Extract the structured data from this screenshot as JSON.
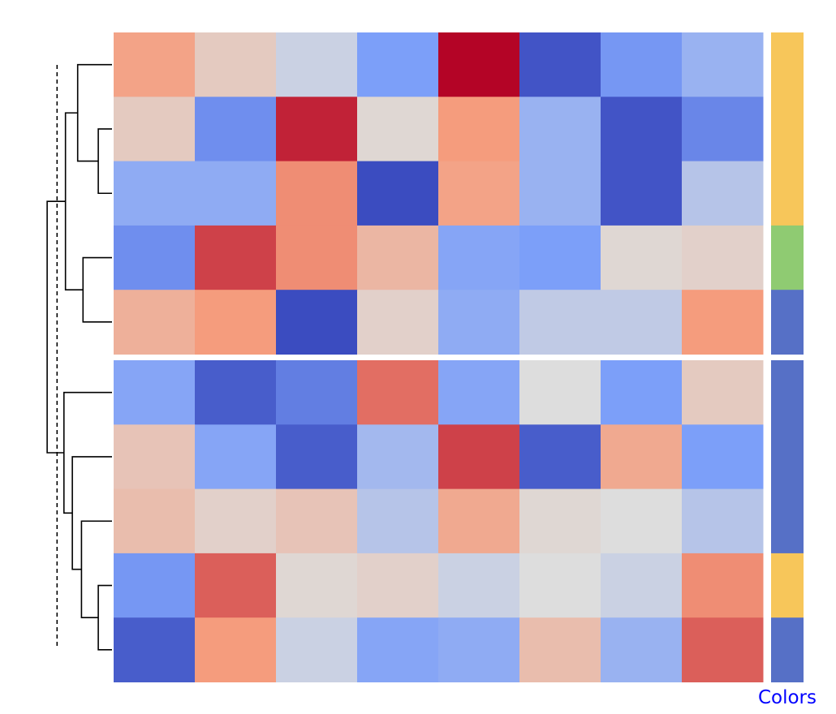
{
  "chart_data": {
    "type": "heatmap",
    "title": "",
    "xlabel": "",
    "ylabel": "",
    "colormap": "coolwarm",
    "vlim": [
      -2,
      2
    ],
    "rows": 10,
    "cols": 8,
    "values": [
      [
        0.9,
        0.3,
        -0.2,
        -1.0,
        2.0,
        -1.9,
        -1.1,
        -0.7
      ],
      [
        0.3,
        -1.2,
        1.8,
        0.1,
        1.0,
        -0.7,
        -1.9,
        -1.3
      ],
      [
        -0.8,
        -0.8,
        1.1,
        -2.0,
        0.9,
        -0.7,
        -1.9,
        -0.4
      ],
      [
        -1.2,
        1.6,
        1.1,
        0.6,
        -0.9,
        -1.0,
        0.1,
        0.2
      ],
      [
        0.7,
        1.0,
        -2.0,
        0.2,
        -0.8,
        -0.3,
        -0.3,
        1.0
      ],
      [
        -0.9,
        -1.8,
        -1.4,
        1.3,
        -0.9,
        0.0,
        -1.0,
        0.3
      ],
      [
        0.4,
        -0.9,
        -1.8,
        -0.6,
        1.6,
        -1.8,
        0.8,
        -1.0
      ],
      [
        0.5,
        0.2,
        0.4,
        -0.4,
        0.8,
        0.1,
        0.0,
        -0.4
      ],
      [
        -1.1,
        1.4,
        0.1,
        0.2,
        -0.2,
        0.0,
        -0.2,
        1.1
      ],
      [
        -1.8,
        1.0,
        -0.2,
        -0.9,
        -0.8,
        0.5,
        -0.7,
        1.4
      ]
    ],
    "row_groups": [
      {
        "rows": [
          0,
          1,
          2,
          3,
          4
        ]
      },
      {
        "rows": [
          5,
          6,
          7,
          8,
          9
        ]
      }
    ],
    "row_colors": [
      "#f7c65a",
      "#f7c65a",
      "#f7c65a",
      "#8fcb72",
      "#5670c6",
      "#5670c6",
      "#5670c6",
      "#5670c6",
      "#f7c65a",
      "#5670c6"
    ],
    "row_colors_label": "Colors",
    "label_color": "#0000ff",
    "dendrogram": {
      "links": [
        {
          "a": 1,
          "b": 2,
          "h": 0.18
        },
        {
          "a": 0,
          "b": "L0",
          "h": 0.45
        },
        {
          "a": 3,
          "b": 4,
          "h": 0.38
        },
        {
          "a": "L1",
          "b": "L2",
          "h": 0.61
        },
        {
          "a": 8,
          "b": 9,
          "h": 0.18
        },
        {
          "a": 7,
          "b": "L4",
          "h": 0.4
        },
        {
          "a": 6,
          "b": "L5",
          "h": 0.52
        },
        {
          "a": 5,
          "b": "L6",
          "h": 0.63
        },
        {
          "a": "L3",
          "b": "L7",
          "h": 0.85
        }
      ],
      "cut_height": 0.72
    }
  }
}
